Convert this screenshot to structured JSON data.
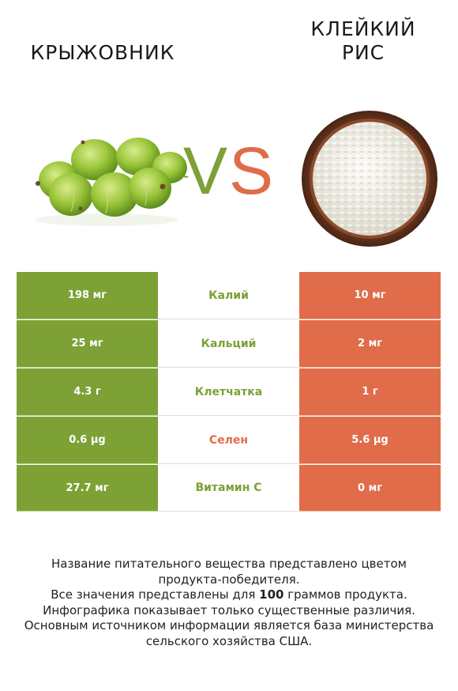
{
  "header": {
    "left_title": "КРЫЖОВНИК",
    "right_title_line1": "КЛЕЙКИЙ",
    "right_title_line2": "РИС",
    "vs_v": "V",
    "vs_s": "S"
  },
  "colors": {
    "left_accent": "#7da135",
    "right_accent": "#e06c4a"
  },
  "images": {
    "left": "gooseberries-image",
    "right": "sticky-rice-bowl-image"
  },
  "rows": [
    {
      "left": "198 мг",
      "name": "Калий",
      "right": "10 мг",
      "winner": "left"
    },
    {
      "left": "25 мг",
      "name": "Кальций",
      "right": "2 мг",
      "winner": "left"
    },
    {
      "left": "4.3 г",
      "name": "Клетчатка",
      "right": "1 г",
      "winner": "left"
    },
    {
      "left": "0.6 µg",
      "name": "Селен",
      "right": "5.6 µg",
      "winner": "right"
    },
    {
      "left": "27.7 мг",
      "name": "Витамин C",
      "right": "0 мг",
      "winner": "left"
    }
  ],
  "footer": {
    "line1": "Название питательного вещества представлено цветом",
    "line2": "продукта-победителя.",
    "line3_pre": "Все значения представлены для ",
    "line3_bold": "100",
    "line3_post": " граммов продукта.",
    "line4": "Инфографика показывает только существенные различия.",
    "line5": "Основным источником информации является база министерства",
    "line6": "сельского хозяйства США."
  }
}
